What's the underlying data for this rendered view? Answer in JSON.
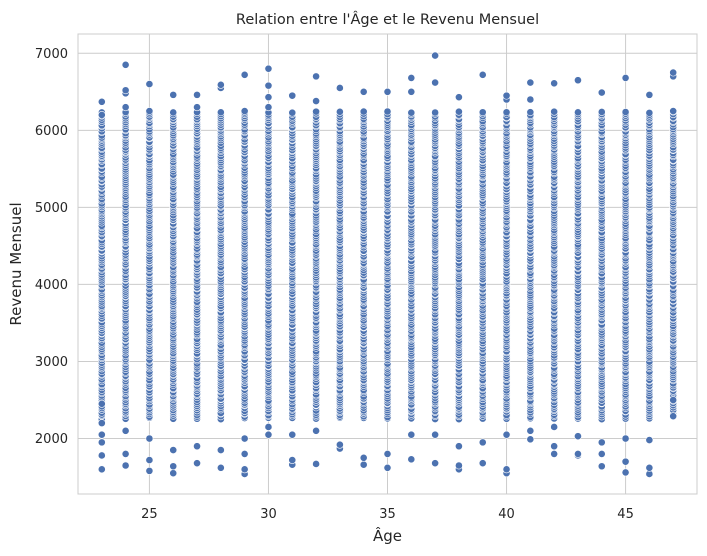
{
  "chart_data": {
    "type": "scatter",
    "title": "Relation entre l'Âge et le Revenu Mensuel",
    "xlabel": "Âge",
    "ylabel": "Revenu Mensuel",
    "xlim": [
      22.0,
      48.0
    ],
    "ylim": [
      1280,
      7250
    ],
    "x_ticks": [
      25,
      30,
      35,
      40,
      45
    ],
    "y_ticks": [
      2000,
      3000,
      4000,
      5000,
      6000,
      7000
    ],
    "grid": true,
    "marker_color": "#4c72b0",
    "series": [
      {
        "ages": [
          23,
          24,
          25,
          26,
          27,
          28,
          29,
          30,
          31,
          32,
          33,
          34,
          35,
          36,
          37,
          38,
          39,
          40,
          41,
          42,
          43,
          44,
          45,
          46,
          47
        ],
        "min_income": [
          1600,
          1650,
          1580,
          1550,
          1680,
          1620,
          1540,
          2050,
          1660,
          1670,
          1870,
          1660,
          1620,
          1730,
          1680,
          1600,
          1680,
          1550,
          1990,
          1800,
          1780,
          1640,
          1560,
          1540,
          2290
        ],
        "max_income": [
          6370,
          6850,
          6600,
          6460,
          6460,
          6590,
          6720,
          6800,
          6450,
          6700,
          6550,
          6500,
          6500,
          6680,
          6970,
          6430,
          6720,
          6450,
          6620,
          6610,
          6650,
          6490,
          6680,
          6460,
          6750
        ],
        "points": [
          {
            "x": 23,
            "y": 1600
          },
          {
            "x": 23,
            "y": 1780
          },
          {
            "x": 23,
            "y": 1950
          },
          {
            "x": 23,
            "y": 2050
          },
          {
            "x": 23,
            "y": 2200
          },
          {
            "x": 23,
            "y": 2450
          },
          {
            "x": 23,
            "y": 6200
          },
          {
            "x": 23,
            "y": 6370
          },
          {
            "x": 24,
            "y": 1650
          },
          {
            "x": 24,
            "y": 1800
          },
          {
            "x": 24,
            "y": 2100
          },
          {
            "x": 24,
            "y": 6300
          },
          {
            "x": 24,
            "y": 6480
          },
          {
            "x": 24,
            "y": 6520
          },
          {
            "x": 24,
            "y": 6850
          },
          {
            "x": 25,
            "y": 1580
          },
          {
            "x": 25,
            "y": 1720
          },
          {
            "x": 25,
            "y": 2000
          },
          {
            "x": 25,
            "y": 6250
          },
          {
            "x": 25,
            "y": 6600
          },
          {
            "x": 26,
            "y": 1550
          },
          {
            "x": 26,
            "y": 1640
          },
          {
            "x": 26,
            "y": 1850
          },
          {
            "x": 26,
            "y": 6460
          },
          {
            "x": 27,
            "y": 1680
          },
          {
            "x": 27,
            "y": 1900
          },
          {
            "x": 27,
            "y": 6300
          },
          {
            "x": 27,
            "y": 6460
          },
          {
            "x": 28,
            "y": 1620
          },
          {
            "x": 28,
            "y": 1850
          },
          {
            "x": 28,
            "y": 6550
          },
          {
            "x": 28,
            "y": 6590
          },
          {
            "x": 29,
            "y": 1540
          },
          {
            "x": 29,
            "y": 1600
          },
          {
            "x": 29,
            "y": 1800
          },
          {
            "x": 29,
            "y": 2000
          },
          {
            "x": 29,
            "y": 6250
          },
          {
            "x": 29,
            "y": 6720
          },
          {
            "x": 30,
            "y": 2050
          },
          {
            "x": 30,
            "y": 2150
          },
          {
            "x": 30,
            "y": 6300
          },
          {
            "x": 30,
            "y": 6430
          },
          {
            "x": 30,
            "y": 6580
          },
          {
            "x": 30,
            "y": 6800
          },
          {
            "x": 31,
            "y": 1660
          },
          {
            "x": 31,
            "y": 1720
          },
          {
            "x": 31,
            "y": 2050
          },
          {
            "x": 31,
            "y": 6450
          },
          {
            "x": 32,
            "y": 1670
          },
          {
            "x": 32,
            "y": 2100
          },
          {
            "x": 32,
            "y": 6380
          },
          {
            "x": 32,
            "y": 6700
          },
          {
            "x": 33,
            "y": 1870
          },
          {
            "x": 33,
            "y": 1920
          },
          {
            "x": 33,
            "y": 6550
          },
          {
            "x": 34,
            "y": 1660
          },
          {
            "x": 34,
            "y": 1750
          },
          {
            "x": 34,
            "y": 6500
          },
          {
            "x": 35,
            "y": 1620
          },
          {
            "x": 35,
            "y": 1800
          },
          {
            "x": 35,
            "y": 6500
          },
          {
            "x": 36,
            "y": 1730
          },
          {
            "x": 36,
            "y": 2050
          },
          {
            "x": 36,
            "y": 6500
          },
          {
            "x": 36,
            "y": 6680
          },
          {
            "x": 37,
            "y": 1680
          },
          {
            "x": 37,
            "y": 2050
          },
          {
            "x": 37,
            "y": 6620
          },
          {
            "x": 37,
            "y": 6970
          },
          {
            "x": 38,
            "y": 1600
          },
          {
            "x": 38,
            "y": 1650
          },
          {
            "x": 38,
            "y": 1900
          },
          {
            "x": 38,
            "y": 6430
          },
          {
            "x": 39,
            "y": 1680
          },
          {
            "x": 39,
            "y": 1950
          },
          {
            "x": 39,
            "y": 6720
          },
          {
            "x": 40,
            "y": 1550
          },
          {
            "x": 40,
            "y": 1600
          },
          {
            "x": 40,
            "y": 2050
          },
          {
            "x": 40,
            "y": 6400
          },
          {
            "x": 40,
            "y": 6450
          },
          {
            "x": 41,
            "y": 1990
          },
          {
            "x": 41,
            "y": 2100
          },
          {
            "x": 41,
            "y": 6400
          },
          {
            "x": 41,
            "y": 6620
          },
          {
            "x": 42,
            "y": 1800
          },
          {
            "x": 42,
            "y": 1900
          },
          {
            "x": 42,
            "y": 2150
          },
          {
            "x": 42,
            "y": 6610
          },
          {
            "x": 43,
            "y": 1780
          },
          {
            "x": 43,
            "y": 1800
          },
          {
            "x": 43,
            "y": 2030
          },
          {
            "x": 43,
            "y": 6650
          },
          {
            "x": 44,
            "y": 1640
          },
          {
            "x": 44,
            "y": 1800
          },
          {
            "x": 44,
            "y": 1950
          },
          {
            "x": 44,
            "y": 6490
          },
          {
            "x": 45,
            "y": 1560
          },
          {
            "x": 45,
            "y": 1700
          },
          {
            "x": 45,
            "y": 2000
          },
          {
            "x": 45,
            "y": 6680
          },
          {
            "x": 46,
            "y": 1540
          },
          {
            "x": 46,
            "y": 1620
          },
          {
            "x": 46,
            "y": 1980
          },
          {
            "x": 46,
            "y": 6460
          },
          {
            "x": 47,
            "y": 2290
          },
          {
            "x": 47,
            "y": 2500
          },
          {
            "x": 47,
            "y": 6250
          },
          {
            "x": 47,
            "y": 6700
          },
          {
            "x": 47,
            "y": 6750
          }
        ]
      }
    ]
  }
}
